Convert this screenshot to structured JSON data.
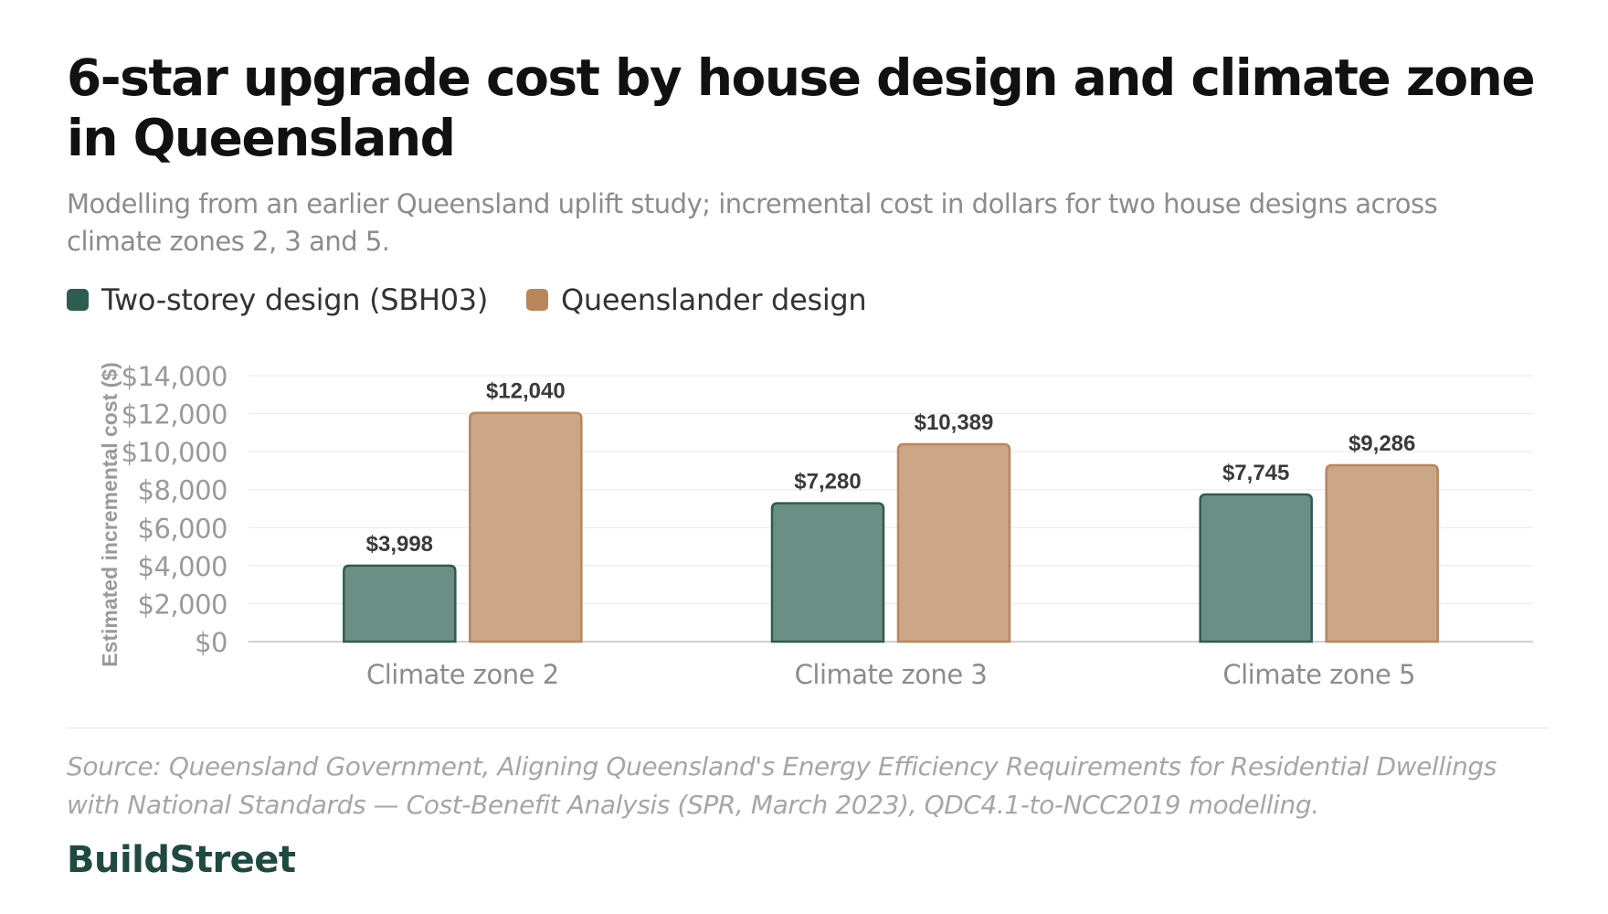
{
  "title": "6-star upgrade cost by house design and climate zone in Queensland",
  "subtitle": "Modelling from an earlier Queensland uplift study; incremental cost in dollars for two house designs across climate zones 2, 3 and 5.",
  "legend": [
    {
      "label": "Two-storey design (SBH03)",
      "color": "#2e5c52"
    },
    {
      "label": "Queenslander design",
      "color": "#b9865c"
    }
  ],
  "source": "Source: Queensland Government, Aligning Queensland's Energy Efficiency Requirements for Residential Dwellings with National Standards — Cost-Benefit Analysis (SPR, March 2023), QDC4.1-to-NCC2019 modelling.",
  "brand": "BuildStreet",
  "chart_data": {
    "type": "bar",
    "categories": [
      "Climate zone 2",
      "Climate zone 3",
      "Climate zone 5"
    ],
    "series": [
      {
        "name": "Two-storey design (SBH03)",
        "values": [
          3998,
          7280,
          7745
        ],
        "labels": [
          "$3,998",
          "$7,280",
          "$7,745"
        ],
        "color": "#2e5c52",
        "fill": "#6b8f85"
      },
      {
        "name": "Queenslander design",
        "values": [
          12040,
          10389,
          9286
        ],
        "labels": [
          "$12,040",
          "$10,389",
          "$9,286"
        ],
        "color": "#b9865c",
        "fill": "#cba687"
      }
    ],
    "ylabel": "Estimated incremental cost ($)",
    "ylim": [
      0,
      14000
    ],
    "yticks": [
      0,
      2000,
      4000,
      6000,
      8000,
      10000,
      12000,
      14000
    ],
    "ytick_labels": [
      "$0",
      "$2,000",
      "$4,000",
      "$6,000",
      "$8,000",
      "$10,000",
      "$12,000",
      "$14,000"
    ],
    "grid": true,
    "legend_position": "top-left"
  }
}
